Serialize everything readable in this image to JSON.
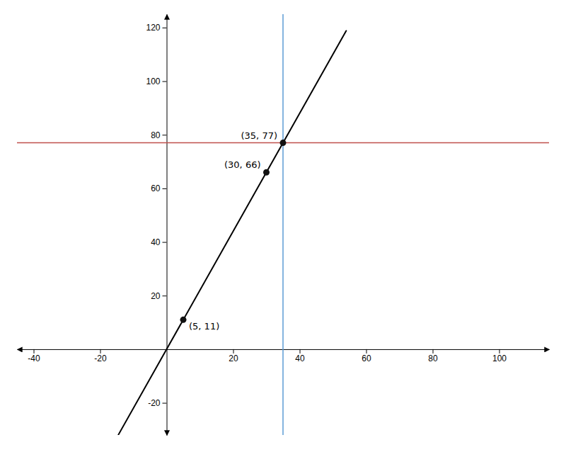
{
  "chart_data": {
    "type": "line",
    "xlim": [
      -45,
      115
    ],
    "ylim": [
      -32,
      125
    ],
    "xticks": [
      -40,
      -20,
      20,
      40,
      60,
      80,
      100
    ],
    "yticks": [
      -20,
      20,
      40,
      60,
      80,
      100,
      120
    ],
    "grid": false,
    "data_labels": true,
    "series": [
      {
        "type": "line",
        "color": "#000000",
        "x": [
          -14.5,
          54
        ],
        "values": [
          -31.9,
          118.8
        ]
      },
      {
        "type": "line",
        "color": "#5b9bd5",
        "x": [
          35,
          35
        ],
        "values": [
          -32,
          125
        ]
      },
      {
        "type": "line",
        "color": "#c0504d",
        "x": [
          -45,
          115
        ],
        "values": [
          77,
          77
        ]
      },
      {
        "type": "scatter",
        "color": "#111111",
        "marker": "circle",
        "x": [
          5,
          30,
          35
        ],
        "values": [
          11,
          66,
          77
        ],
        "value_labels": [
          "(5, 11)",
          "(30, 66)",
          "(35, 77)"
        ]
      }
    ]
  }
}
